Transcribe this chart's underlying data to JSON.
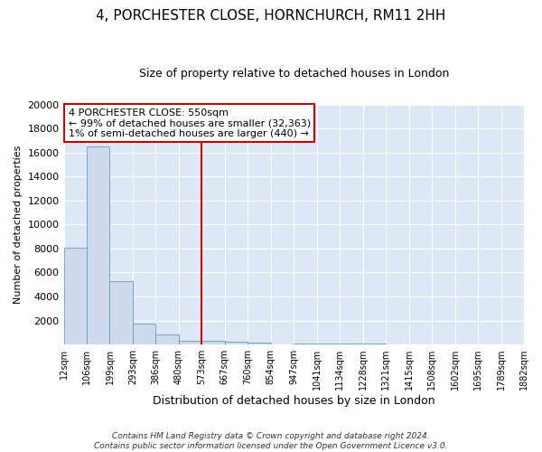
{
  "title": "4, PORCHESTER CLOSE, HORNCHURCH, RM11 2HH",
  "subtitle": "Size of property relative to detached houses in London",
  "xlabel": "Distribution of detached houses by size in London",
  "ylabel": "Number of detached properties",
  "bar_values": [
    8100,
    16500,
    5300,
    1750,
    800,
    300,
    270,
    200,
    150,
    0,
    90,
    70,
    55,
    45,
    35,
    28,
    22,
    18,
    12,
    8
  ],
  "bin_labels": [
    "12sqm",
    "106sqm",
    "199sqm",
    "293sqm",
    "386sqm",
    "480sqm",
    "573sqm",
    "667sqm",
    "760sqm",
    "854sqm",
    "947sqm",
    "1041sqm",
    "1134sqm",
    "1228sqm",
    "1321sqm",
    "1415sqm",
    "1508sqm",
    "1602sqm",
    "1695sqm",
    "1789sqm",
    "1882sqm"
  ],
  "bar_color": "#ccdaeb",
  "bar_edge_color": "#6699cc",
  "vline_x_bin": 6,
  "vline_color": "#cc0000",
  "annotation_text": "4 PORCHESTER CLOSE: 550sqm\n← 99% of detached houses are smaller (32,363)\n1% of semi-detached houses are larger (440) →",
  "annotation_box_facecolor": "#ffffff",
  "annotation_box_edgecolor": "#cc0000",
  "footnote": "Contains HM Land Registry data © Crown copyright and database right 2024.\nContains public sector information licensed under the Open Government Licence v3.0.",
  "ylim": [
    0,
    20000
  ],
  "yticks": [
    0,
    2000,
    4000,
    6000,
    8000,
    10000,
    12000,
    14000,
    16000,
    18000,
    20000
  ],
  "fig_facecolor": "#ffffff",
  "ax_facecolor": "#dce8f5",
  "grid_color": "#ffffff",
  "title_fontsize": 11,
  "subtitle_fontsize": 9,
  "ylabel_fontsize": 8,
  "xlabel_fontsize": 9,
  "tick_fontsize": 7,
  "ytick_fontsize": 8,
  "footnote_fontsize": 6.5,
  "annotation_fontsize": 8
}
